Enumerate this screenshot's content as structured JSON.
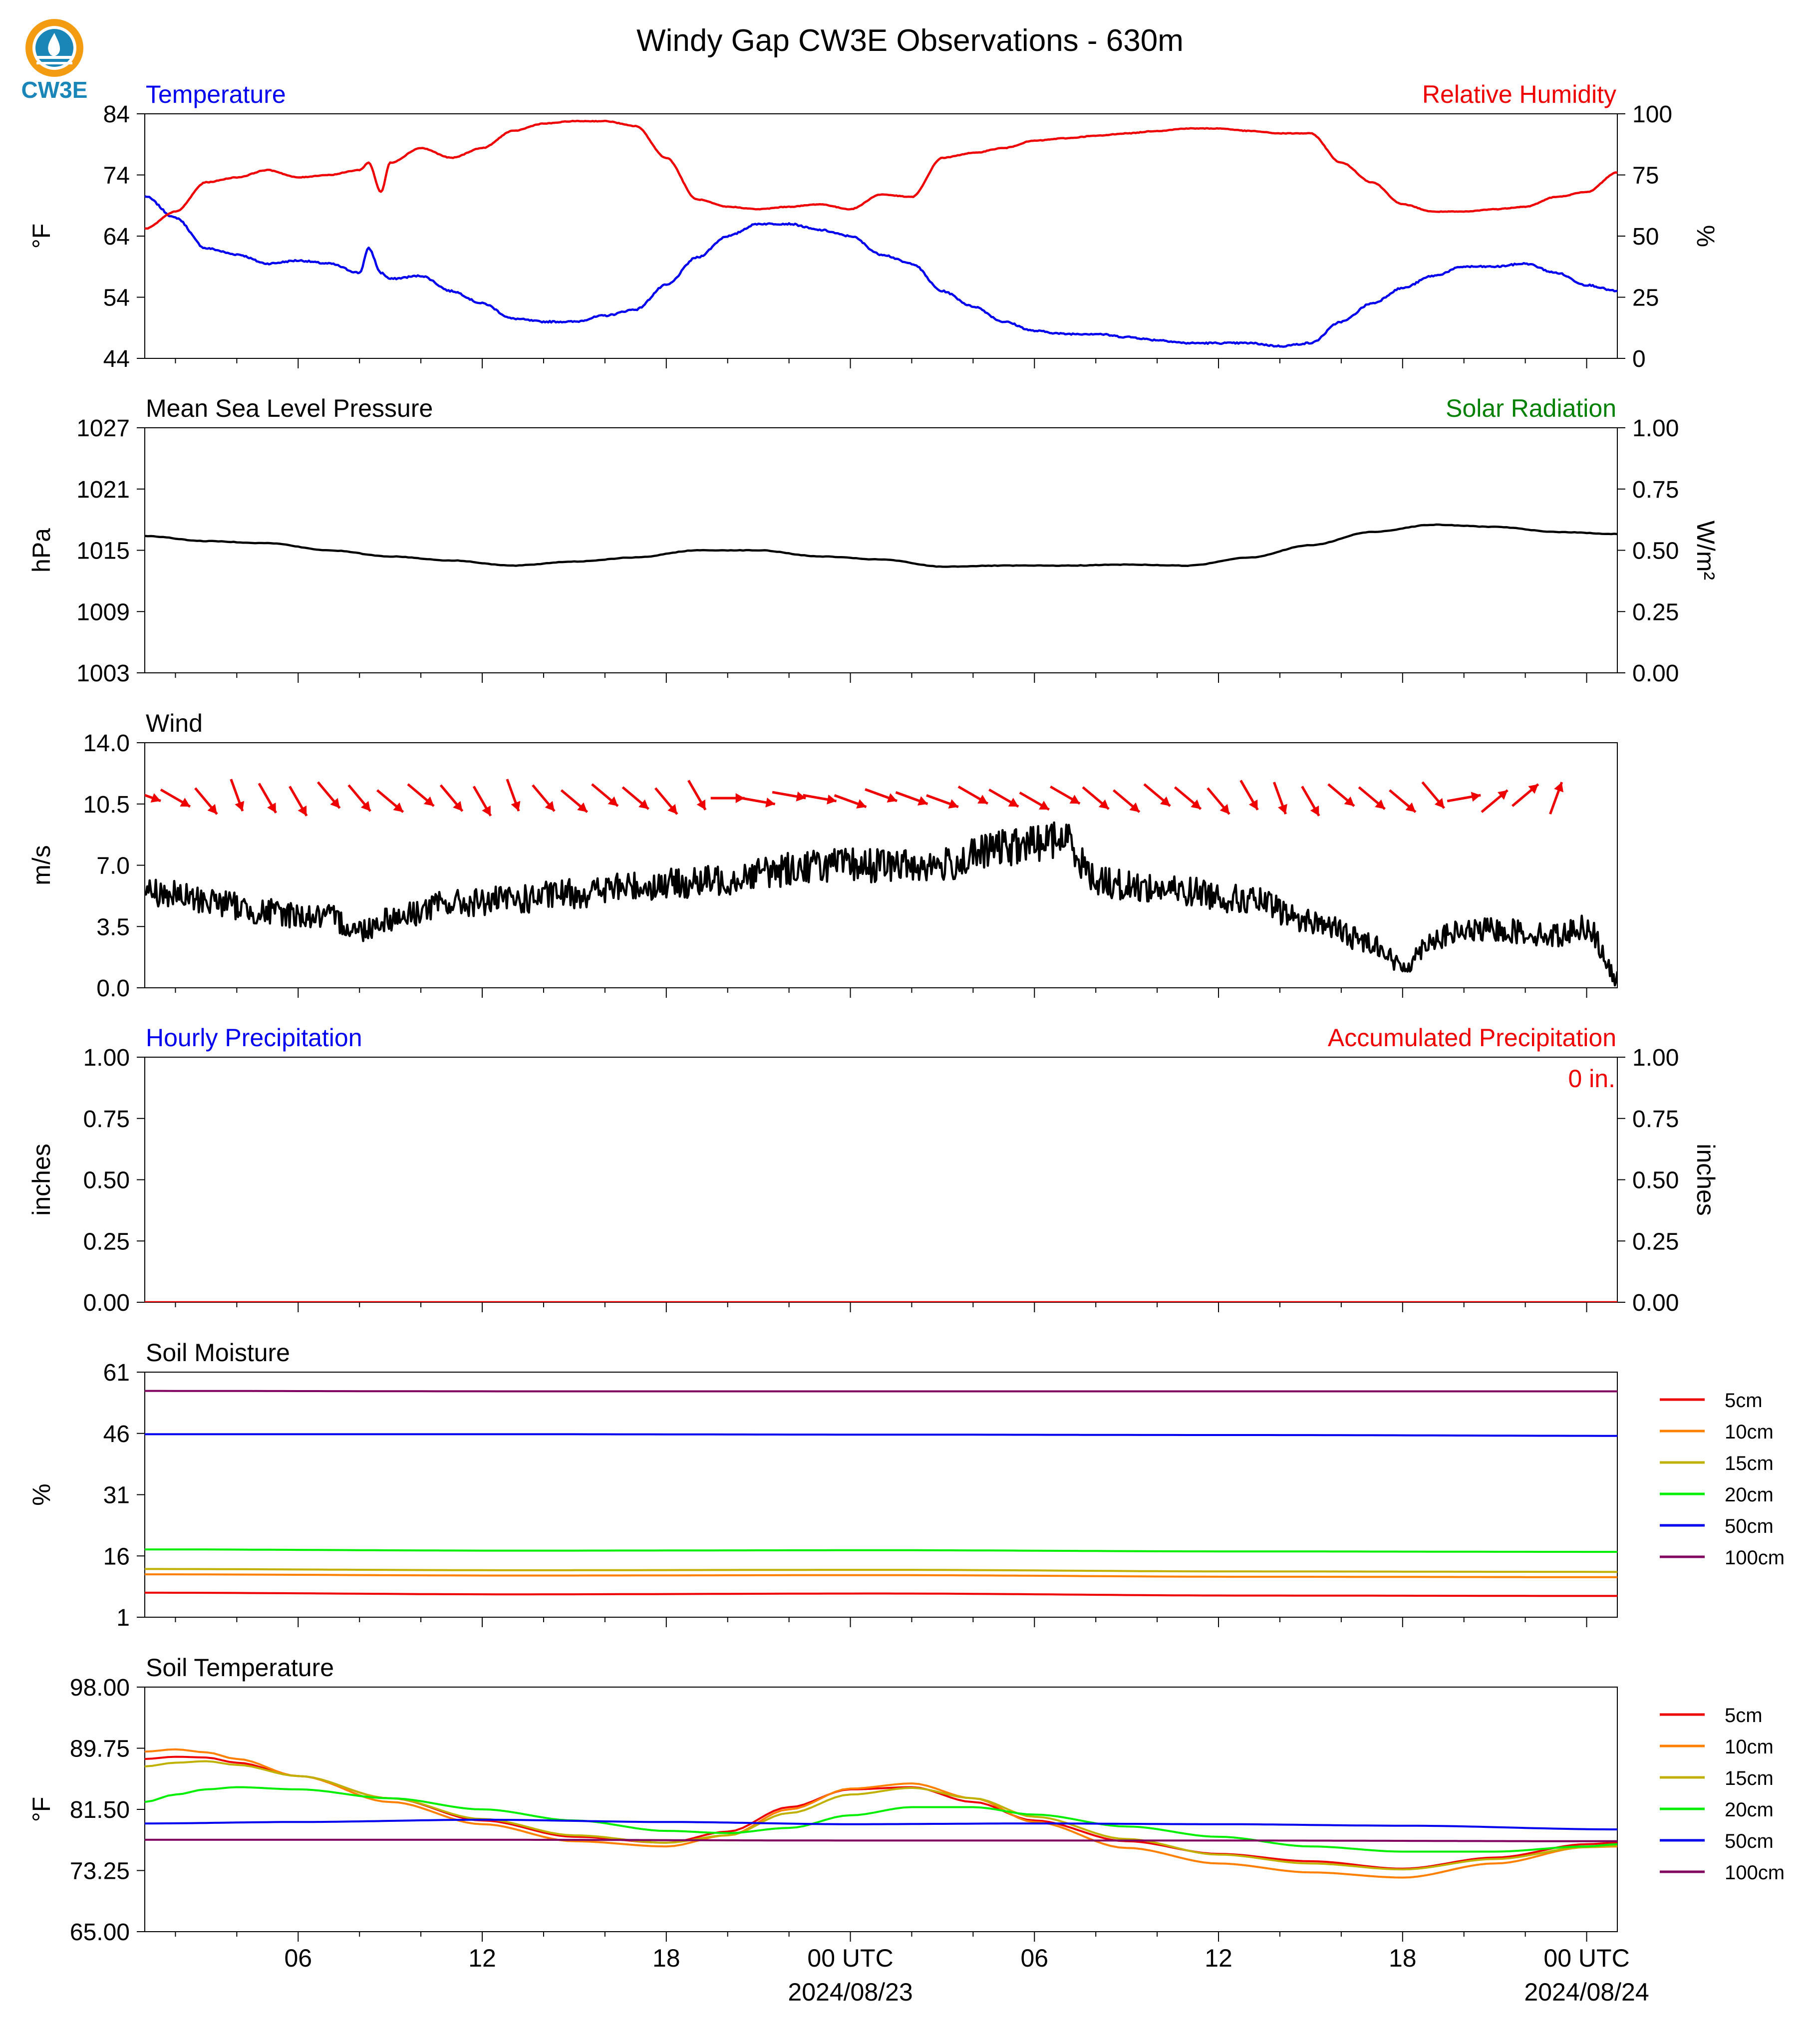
{
  "header": {
    "title": "Windy Gap CW3E Observations - 630m",
    "logo_text": "CW3E"
  },
  "colors": {
    "temperature": "#0000ee",
    "humidity": "#ee0000",
    "solar": "#008000",
    "pressure": "#000000",
    "wind_speed": "#000000",
    "wind_barb": "#ee0000",
    "soil_5cm": "#ee0000",
    "soil_10cm": "#ff8000",
    "soil_15cm": "#c0b000",
    "soil_20cm": "#00ee00",
    "soil_50cm": "#0000ee",
    "soil_100cm": "#800060",
    "logo_orange": "#f39c12",
    "logo_blue": "#1a86b8"
  },
  "time_axis": {
    "tick_labels": [
      "06",
      "12",
      "18",
      "00 UTC",
      "06",
      "12",
      "18",
      "00 UTC"
    ],
    "tick_hours": [
      6,
      12,
      18,
      24,
      30,
      36,
      42,
      48
    ],
    "date_labels": [
      "2024/08/23",
      "2024/08/24"
    ],
    "range_hours": [
      1,
      49
    ]
  },
  "chart_data": [
    {
      "id": "temp_rh",
      "type": "line",
      "title_left": "Temperature",
      "title_right": "Relative Humidity",
      "ylabel_left": "°F",
      "ylabel_right": "%",
      "ylim_left": [
        44,
        84
      ],
      "yticks_left": [
        "84",
        "74",
        "64",
        "54",
        "44"
      ],
      "ylim_right": [
        0,
        100
      ],
      "yticks_right": [
        "100",
        "75",
        "50",
        "25",
        "0"
      ],
      "series": [
        {
          "name": "Temperature",
          "axis": "left",
          "color_key": "temperature",
          "x": [
            1,
            2,
            3,
            4,
            5,
            6,
            7,
            8,
            8.3,
            8.7,
            9,
            10,
            11,
            12,
            13,
            14,
            15,
            16,
            17,
            18,
            19,
            20,
            21,
            22,
            23,
            24,
            25,
            26,
            27,
            28,
            29,
            30,
            31,
            32,
            33,
            34,
            35,
            36,
            37,
            38,
            39,
            40,
            41,
            42,
            43,
            44,
            45,
            46,
            47,
            48,
            49
          ],
          "y": [
            70.5,
            67,
            62,
            61,
            59.5,
            60,
            59.5,
            58,
            62,
            58,
            57,
            57.5,
            55,
            53,
            50.5,
            50,
            50,
            51,
            52,
            56,
            60.5,
            64,
            66,
            66,
            65,
            64,
            61,
            59.5,
            55,
            52.5,
            50,
            48.5,
            48,
            48,
            47.5,
            47,
            46.5,
            46.5,
            46.5,
            46,
            46.5,
            50,
            53,
            55.5,
            57.5,
            59,
            59,
            59.5,
            58,
            56,
            55
          ]
        },
        {
          "name": "Relative Humidity",
          "axis": "right",
          "color_key": "humidity",
          "x": [
            1,
            2,
            3,
            4,
            5,
            6,
            7,
            8,
            8.3,
            8.7,
            9,
            10,
            11,
            12,
            13,
            14,
            15,
            16,
            17,
            18,
            19,
            20,
            21,
            22,
            23,
            24,
            25,
            26,
            27,
            28,
            29,
            30,
            31,
            32,
            33,
            34,
            35,
            36,
            37,
            38,
            39,
            40,
            41,
            42,
            43,
            44,
            45,
            46,
            47,
            48,
            49
          ],
          "y": [
            53,
            60,
            72,
            74,
            77,
            74,
            75,
            77,
            80,
            68,
            80,
            86,
            82,
            86,
            93,
            96,
            97,
            97,
            95,
            82,
            65,
            62,
            61,
            62,
            63,
            61,
            67,
            66,
            82,
            84,
            86,
            89,
            90,
            91,
            92,
            93,
            94,
            94,
            93,
            92,
            92,
            80,
            72,
            63,
            60,
            60,
            61,
            62,
            66,
            68,
            76
          ]
        }
      ]
    },
    {
      "id": "pressure",
      "type": "line",
      "title_left": "Mean Sea Level Pressure",
      "title_right": "Solar Radiation",
      "ylabel_left": "hPa",
      "ylabel_right": "W/m²",
      "ylim_left": [
        1003,
        1027
      ],
      "yticks_left": [
        "1027",
        "1021",
        "1015",
        "1009",
        "1003"
      ],
      "ylim_right": [
        0,
        1
      ],
      "yticks_right": [
        "1.00",
        "0.75",
        "0.50",
        "0.25",
        "0.00"
      ],
      "series": [
        {
          "name": "Mean Sea Level Pressure",
          "axis": "left",
          "color_key": "pressure",
          "x": [
            1,
            3,
            5,
            7,
            9,
            11,
            13,
            15,
            17,
            19,
            21,
            23,
            25,
            27,
            29,
            31,
            33,
            35,
            37,
            39,
            41,
            43,
            45,
            47,
            49
          ],
          "y": [
            1016.4,
            1015.9,
            1015.7,
            1015,
            1014.4,
            1014,
            1013.5,
            1013.9,
            1014.3,
            1015,
            1015,
            1014.4,
            1014.1,
            1013.4,
            1013.5,
            1013.5,
            1013.6,
            1013.5,
            1014.3,
            1015.5,
            1016.8,
            1017.5,
            1017.3,
            1016.8,
            1016.6
          ]
        }
      ]
    },
    {
      "id": "wind",
      "type": "line",
      "title_left": "Wind",
      "ylabel_left": "m/s",
      "ylim_left": [
        0,
        14
      ],
      "yticks_left": [
        "14.0",
        "10.5",
        "7.0",
        "3.5",
        "0.0"
      ],
      "series": [
        {
          "name": "Wind",
          "axis": "left",
          "color_key": "wind_speed",
          "x": [
            1,
            3,
            5,
            7,
            8,
            9,
            11,
            13,
            15,
            17,
            19,
            20,
            21,
            23,
            25,
            27,
            29,
            31,
            32,
            33,
            35,
            37,
            39,
            41,
            42,
            43,
            44,
            45,
            47,
            48,
            49
          ],
          "y": [
            5.5,
            5,
            4.3,
            4,
            3.3,
            4,
            4.8,
            5,
            5.4,
            5.8,
            6,
            6.2,
            6.6,
            7,
            7,
            7,
            8,
            8.5,
            6.2,
            5.8,
            5.5,
            5,
            3.8,
            2.6,
            1.2,
            2.8,
            3.2,
            3.3,
            3,
            3.5,
            0.5
          ]
        }
      ],
      "barbs": {
        "x": [
          1,
          2,
          3,
          4,
          5,
          6,
          7,
          8,
          9,
          10,
          11,
          12,
          13,
          14,
          15,
          16,
          17,
          18,
          19,
          20,
          21,
          22,
          23,
          24,
          25,
          26,
          27,
          28,
          29,
          30,
          31,
          32,
          33,
          34,
          35,
          36,
          37,
          38,
          39,
          40,
          41,
          42,
          43,
          44,
          45,
          46,
          47
        ],
        "direction_deg": [
          290,
          300,
          320,
          340,
          330,
          330,
          320,
          320,
          310,
          310,
          320,
          330,
          340,
          320,
          310,
          310,
          310,
          320,
          330,
          270,
          280,
          280,
          280,
          290,
          290,
          290,
          290,
          300,
          300,
          300,
          300,
          310,
          310,
          310,
          310,
          320,
          330,
          340,
          330,
          310,
          310,
          310,
          320,
          260,
          230,
          230,
          200
        ]
      }
    },
    {
      "id": "precip",
      "type": "line",
      "title_left": "Hourly Precipitation",
      "title_right": "Accumulated Precipitation",
      "annotation": "0 in.",
      "ylabel_left": "inches",
      "ylabel_right": "inches",
      "ylim_left": [
        0,
        1
      ],
      "yticks_left": [
        "1.00",
        "0.75",
        "0.50",
        "0.25",
        "0.00"
      ],
      "ylim_right": [
        0,
        1
      ],
      "yticks_right": [
        "1.00",
        "0.75",
        "0.50",
        "0.25",
        "0.00"
      ],
      "series": [
        {
          "name": "Accumulated Precipitation",
          "axis": "right",
          "color_key": "humidity",
          "x": [
            1,
            49
          ],
          "y": [
            0,
            0
          ]
        }
      ]
    },
    {
      "id": "soil_moisture",
      "type": "line",
      "title_left": "Soil Moisture",
      "ylabel_left": "%",
      "ylim_left": [
        1,
        61
      ],
      "yticks_left": [
        "61",
        "46",
        "31",
        "16",
        "1"
      ],
      "series": [
        {
          "name": "5cm",
          "axis": "left",
          "color_key": "soil_5cm",
          "x": [
            1,
            13,
            25,
            37,
            49
          ],
          "y": [
            7,
            6.6,
            6.8,
            6.3,
            6.2
          ]
        },
        {
          "name": "10cm",
          "axis": "left",
          "color_key": "soil_10cm",
          "x": [
            1,
            13,
            25,
            37,
            49
          ],
          "y": [
            11.5,
            11.2,
            11.3,
            10.9,
            10.8
          ]
        },
        {
          "name": "15cm",
          "axis": "left",
          "color_key": "soil_15cm",
          "x": [
            1,
            13,
            25,
            37,
            49
          ],
          "y": [
            12.8,
            12.5,
            12.6,
            12.2,
            12.1
          ]
        },
        {
          "name": "20cm",
          "axis": "left",
          "color_key": "soil_20cm",
          "x": [
            1,
            13,
            25,
            37,
            49
          ],
          "y": [
            17.6,
            17.3,
            17.4,
            17.1,
            17.0
          ]
        },
        {
          "name": "50cm",
          "axis": "left",
          "color_key": "soil_50cm",
          "x": [
            1,
            13,
            25,
            37,
            49
          ],
          "y": [
            45.8,
            45.8,
            45.7,
            45.6,
            45.4
          ]
        },
        {
          "name": "100cm",
          "axis": "left",
          "color_key": "soil_100cm",
          "x": [
            1,
            13,
            25,
            37,
            49
          ],
          "y": [
            56.4,
            56.3,
            56.3,
            56.3,
            56.3
          ]
        }
      ],
      "legend": [
        "5cm",
        "10cm",
        "15cm",
        "20cm",
        "50cm",
        "100cm"
      ]
    },
    {
      "id": "soil_temp",
      "type": "line",
      "title_left": "Soil Temperature",
      "ylabel_left": "°F",
      "ylim_left": [
        65,
        98
      ],
      "yticks_left": [
        "98.00",
        "89.75",
        "81.50",
        "73.25",
        "65.00"
      ],
      "series": [
        {
          "name": "5cm",
          "axis": "left",
          "color_key": "soil_5cm",
          "x": [
            1,
            2,
            3,
            4,
            6,
            9,
            12,
            15,
            18,
            20,
            22,
            24,
            26,
            28,
            30,
            33,
            36,
            39,
            42,
            45,
            48,
            49
          ],
          "y": [
            88.3,
            88.6,
            88.5,
            87.8,
            86.0,
            83.0,
            80.0,
            77.8,
            77.0,
            78.5,
            81.8,
            84.2,
            84.5,
            82.5,
            80.0,
            77.2,
            75.5,
            74.5,
            73.5,
            75.0,
            76.8,
            77.0
          ]
        },
        {
          "name": "10cm",
          "axis": "left",
          "color_key": "soil_10cm",
          "x": [
            1,
            2,
            3,
            4,
            6,
            9,
            12,
            15,
            18,
            20,
            22,
            24,
            26,
            28,
            30,
            33,
            36,
            39,
            42,
            45,
            48,
            49
          ],
          "y": [
            89.3,
            89.6,
            89.2,
            88.3,
            86.0,
            82.5,
            79.5,
            77.2,
            76.5,
            78.0,
            81.5,
            84.3,
            85.0,
            83.0,
            79.8,
            76.3,
            74.2,
            73.0,
            72.3,
            74.2,
            76.4,
            76.5
          ]
        },
        {
          "name": "15cm",
          "axis": "left",
          "color_key": "soil_15cm",
          "x": [
            1,
            2,
            3,
            4,
            6,
            9,
            12,
            15,
            18,
            20,
            22,
            24,
            26,
            28,
            30,
            33,
            36,
            39,
            42,
            45,
            48,
            49
          ],
          "y": [
            87.3,
            87.8,
            88.0,
            87.5,
            86.0,
            83.0,
            80.2,
            78.0,
            77.0,
            78.0,
            81.0,
            83.5,
            84.4,
            83.0,
            80.5,
            77.5,
            75.4,
            74.2,
            73.4,
            74.8,
            76.4,
            76.6
          ]
        },
        {
          "name": "20cm",
          "axis": "left",
          "color_key": "soil_20cm",
          "x": [
            1,
            2,
            3,
            4,
            6,
            9,
            12,
            15,
            18,
            20,
            22,
            24,
            26,
            28,
            30,
            33,
            36,
            39,
            42,
            45,
            48,
            49
          ],
          "y": [
            82.5,
            83.5,
            84.2,
            84.5,
            84.2,
            83.0,
            81.5,
            80.0,
            78.6,
            78.3,
            79.0,
            80.7,
            81.8,
            81.8,
            80.8,
            79.2,
            77.8,
            76.5,
            75.8,
            75.8,
            76.5,
            76.8
          ]
        },
        {
          "name": "50cm",
          "axis": "left",
          "color_key": "soil_50cm",
          "x": [
            1,
            6,
            12,
            18,
            24,
            30,
            36,
            42,
            49
          ],
          "y": [
            79.6,
            79.8,
            80.1,
            79.8,
            79.5,
            79.6,
            79.5,
            79.3,
            78.8
          ]
        },
        {
          "name": "100cm",
          "axis": "left",
          "color_key": "soil_100cm",
          "x": [
            1,
            12,
            24,
            36,
            49
          ],
          "y": [
            77.4,
            77.4,
            77.3,
            77.3,
            77.2
          ]
        }
      ],
      "legend": [
        "5cm",
        "10cm",
        "15cm",
        "20cm",
        "50cm",
        "100cm"
      ]
    }
  ]
}
